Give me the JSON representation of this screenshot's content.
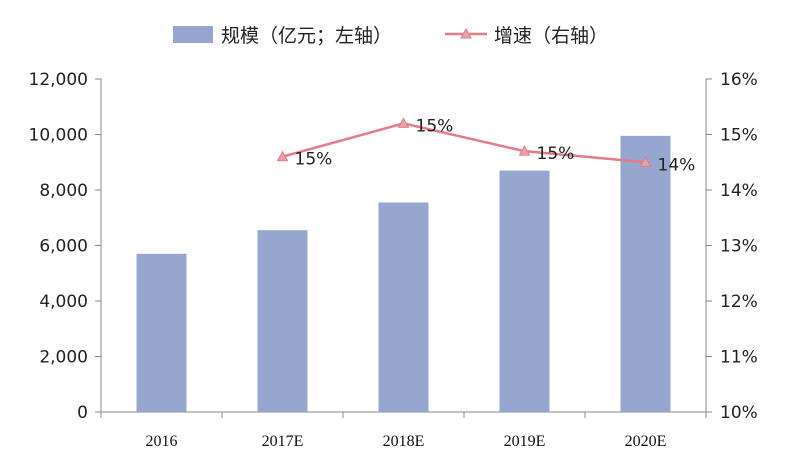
{
  "chart_data": {
    "type": "bar",
    "categories": [
      "2016",
      "2017E",
      "2018E",
      "2019E",
      "2020E"
    ],
    "series": [
      {
        "name": "规模（亿元；左轴）",
        "type": "bar",
        "axis": "left",
        "values": [
          5700,
          6550,
          7550,
          8700,
          9950
        ],
        "color": "#97a6cf"
      },
      {
        "name": "增速（右轴）",
        "type": "line",
        "axis": "right",
        "values": [
          null,
          14.6,
          15.2,
          14.7,
          14.5
        ],
        "data_labels": [
          "",
          "15%",
          "15%",
          "15%",
          "14%"
        ],
        "color": "#e07d86"
      }
    ],
    "y_left": {
      "lim": [
        0,
        12000
      ],
      "ticks": [
        0,
        2000,
        4000,
        6000,
        8000,
        10000,
        12000
      ],
      "tick_labels": [
        "0",
        "2,000",
        "4,000",
        "6,000",
        "8,000",
        "10,000",
        "12,000"
      ]
    },
    "y_right": {
      "lim": [
        10,
        16
      ],
      "ticks": [
        10,
        11,
        12,
        13,
        14,
        15,
        16
      ],
      "tick_labels": [
        "10%",
        "11%",
        "12%",
        "13%",
        "14%",
        "15%",
        "16%"
      ]
    },
    "grid": false,
    "legend_position": "top"
  }
}
